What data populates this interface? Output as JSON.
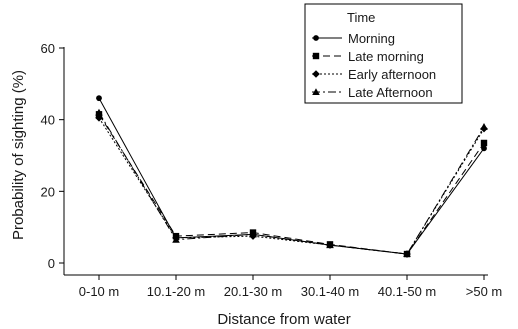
{
  "chart_data": {
    "type": "line",
    "xlabel": "Distance from water",
    "ylabel": "Probability of sighting (%)",
    "categories": [
      "0-10 m",
      "10.1-20 m",
      "20.1-30 m",
      "30.1-40 m",
      "40.1-50 m",
      ">50 m"
    ],
    "ylim": [
      0,
      60
    ],
    "yticks": [
      0,
      20,
      40,
      60
    ],
    "grid": false,
    "legend": {
      "title": "Time",
      "placement": "top-right"
    },
    "series": [
      {
        "name": "Morning",
        "values": [
          46,
          7,
          8,
          5,
          2.5,
          32
        ],
        "marker": "circle",
        "dash": "solid"
      },
      {
        "name": "Late morning",
        "values": [
          41.5,
          7.5,
          8.5,
          5.2,
          2.5,
          33.5
        ],
        "marker": "square",
        "dash": "long-dash"
      },
      {
        "name": "Early afternoon",
        "values": [
          40.5,
          7,
          7.5,
          5,
          2.5,
          37.5
        ],
        "marker": "diamond",
        "dash": "dotted"
      },
      {
        "name": "Late Afternoon",
        "values": [
          42,
          6.5,
          8,
          5,
          2.5,
          38
        ],
        "marker": "triangle",
        "dash": "dash-dot"
      }
    ],
    "colors": {
      "line": "#000000",
      "text": "#1a1a1a"
    }
  }
}
